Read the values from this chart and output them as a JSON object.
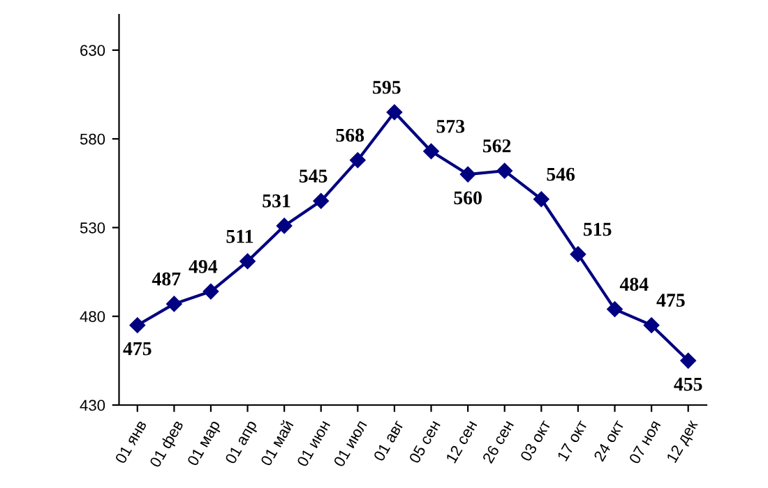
{
  "chart_data": {
    "type": "line",
    "categories": [
      "01 янв",
      "01 фев",
      "01 мар",
      "01 апр",
      "01 май",
      "01 июн",
      "01 июл",
      "01 авг",
      "05 сен",
      "12 сен",
      "26 сен",
      "03 окт",
      "17 окт",
      "24 окт",
      "07 ноя",
      "12 дек"
    ],
    "series": [
      {
        "color": "#000080",
        "values": [
          475,
          487,
          494,
          511,
          531,
          545,
          568,
          595,
          573,
          560,
          562,
          546,
          515,
          484,
          475,
          455
        ]
      }
    ],
    "ylim": [
      430,
      650
    ],
    "yticks": [
      430,
      480,
      530,
      580,
      630
    ],
    "marker": "diamond",
    "line_style": "solid",
    "data_labels": true,
    "grid": false,
    "legend": false
  }
}
